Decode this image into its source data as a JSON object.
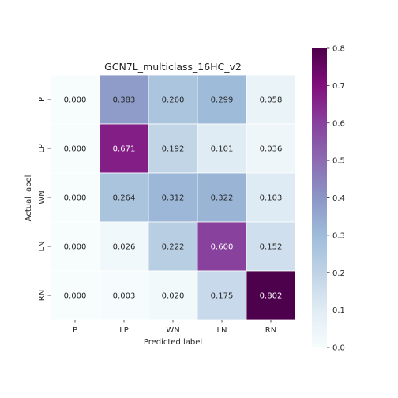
{
  "chart_data": {
    "type": "heatmap",
    "title": "GCN7L_multiclass_16HC_v2",
    "xlabel": "Predicted label",
    "ylabel": "Actual label",
    "x_categories": [
      "P",
      "LP",
      "WN",
      "LN",
      "RN"
    ],
    "y_categories": [
      "P",
      "LP",
      "WN",
      "LN",
      "RN"
    ],
    "values": [
      [
        0.0,
        0.383,
        0.26,
        0.299,
        0.058
      ],
      [
        0.0,
        0.671,
        0.192,
        0.101,
        0.036
      ],
      [
        0.0,
        0.264,
        0.312,
        0.322,
        0.103
      ],
      [
        0.0,
        0.026,
        0.222,
        0.6,
        0.152
      ],
      [
        0.0,
        0.003,
        0.02,
        0.175,
        0.802
      ]
    ],
    "value_format": "0.000",
    "colormap": "BuPu",
    "colorbar": {
      "vmin": 0.0,
      "vmax": 0.8,
      "ticks": [
        "0.0",
        "0.1",
        "0.2",
        "0.3",
        "0.4",
        "0.5",
        "0.6",
        "0.7",
        "0.8"
      ]
    },
    "colors": {
      "cell_border": "#ffffff",
      "text_dark": "#262626",
      "text_light": "#ffffff",
      "axis_text": "#262626"
    }
  }
}
